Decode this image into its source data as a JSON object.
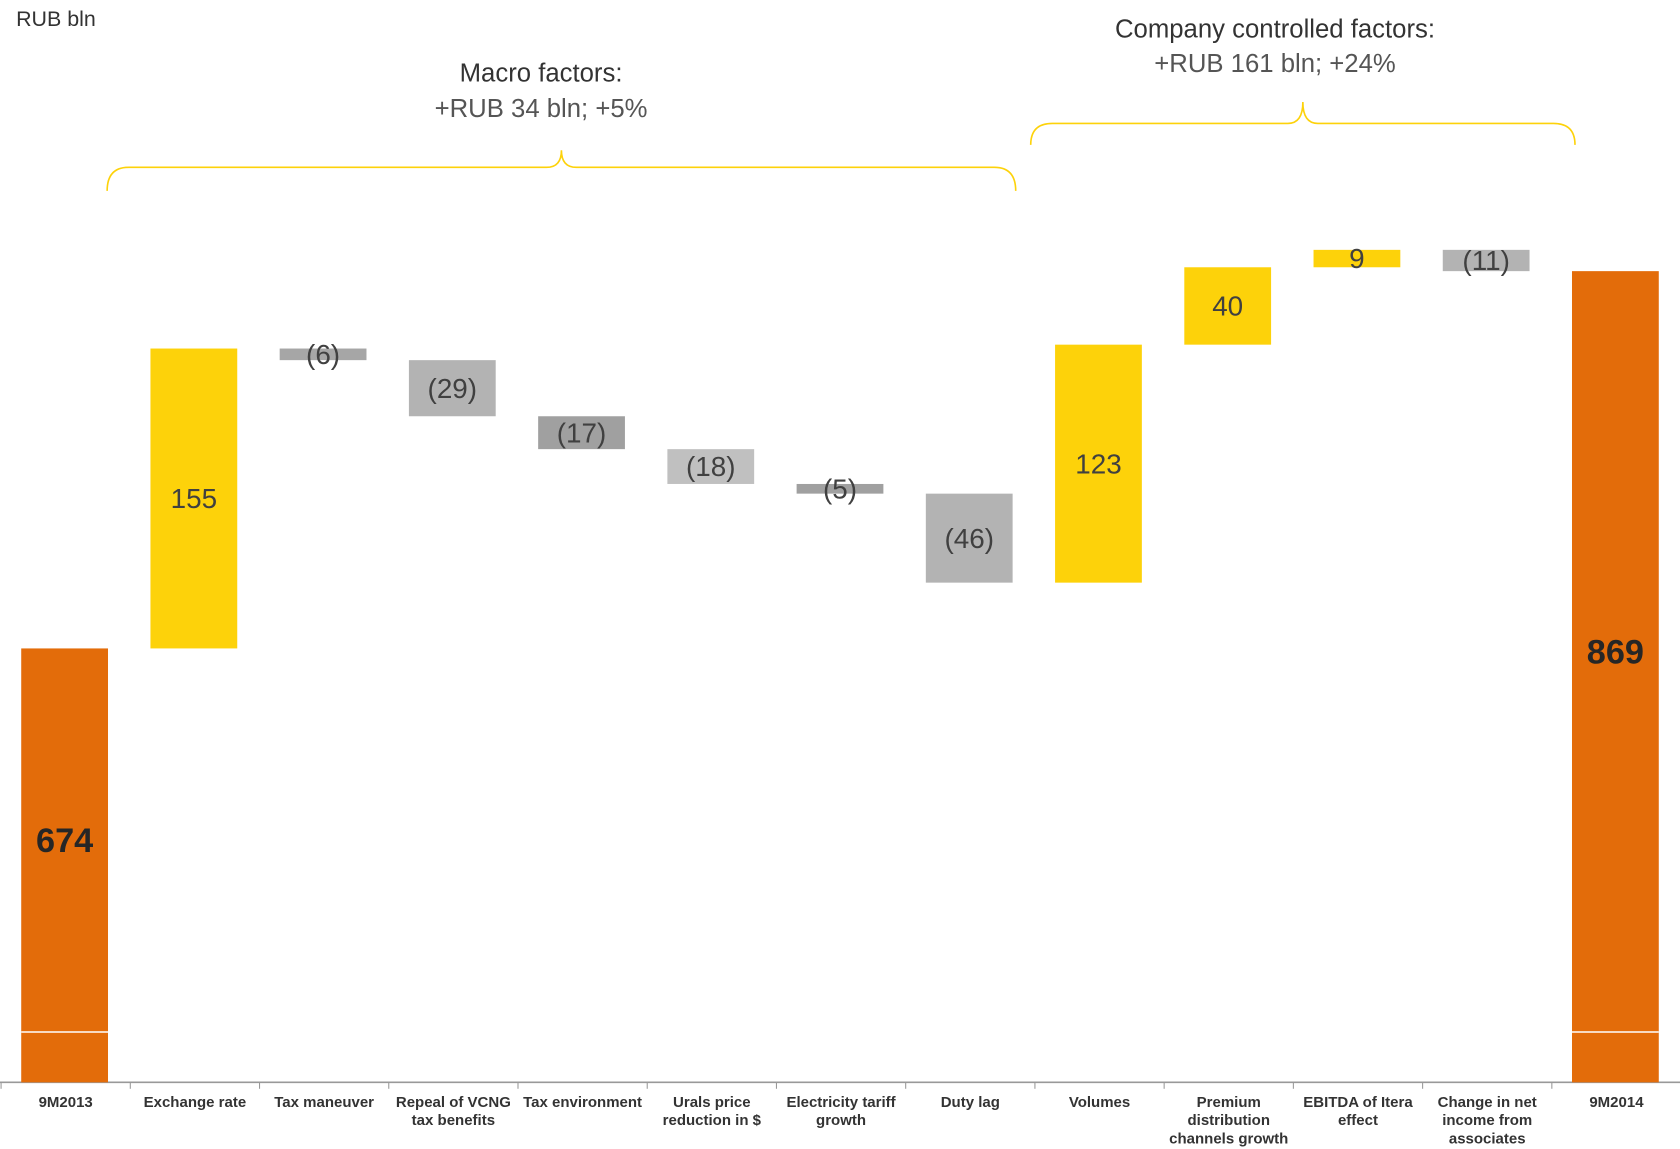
{
  "chart_data": {
    "type": "waterfall",
    "unit_label": "RUB bln",
    "categories": [
      "9M2013",
      "Exchange rate",
      "Tax maneuver",
      "Repeal of VCNG tax benefits",
      "Tax environment",
      "Urals price reduction in $",
      "Electricity tariff growth",
      "Duty lag",
      "Volumes",
      "Premium distribution channels growth",
      "EBITDA of Itera effect",
      "Change in net income from associates",
      "9M2014"
    ],
    "values": [
      674,
      155,
      -6,
      -29,
      -17,
      -18,
      -5,
      -46,
      123,
      40,
      9,
      -11,
      869
    ],
    "value_labels": [
      "674",
      "155",
      "(6)",
      "(29)",
      "(17)",
      "(18)",
      "(5)",
      "(46)",
      "123",
      "40",
      "9",
      "(11)",
      "869"
    ],
    "colors": [
      "#e36c0a",
      "#fdd20a",
      "#a6a6a6",
      "#b3b3b3",
      "#a0a0a0",
      "#c0c0c0",
      "#a0a0a0",
      "#b3b3b3",
      "#fdd20a",
      "#fdd20a",
      "#fdd20a",
      "#b3b3b3",
      "#e36c0a"
    ],
    "annotations": [
      {
        "title": "Macro factors:",
        "text": "+RUB 34 bln; +5%"
      },
      {
        "title": "Company controlled factors:",
        "text": "+RUB 161 bln; +24%"
      }
    ]
  }
}
